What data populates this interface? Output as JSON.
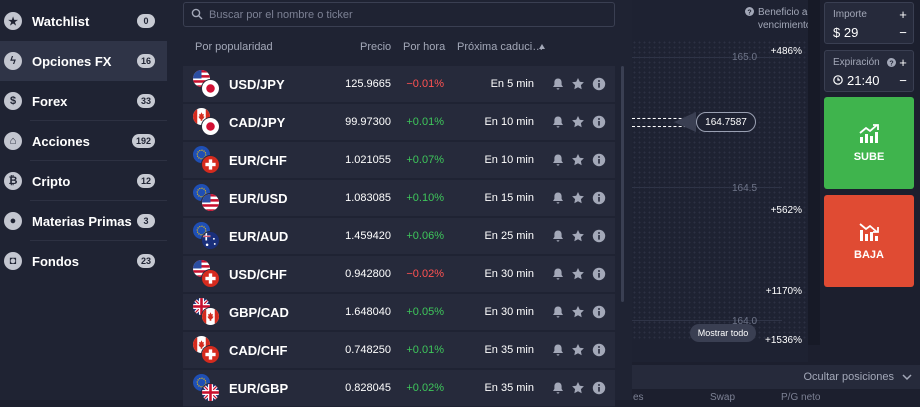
{
  "sidebar": {
    "items": [
      {
        "label": "Watchlist",
        "count": "0",
        "icon": "star-icon",
        "glyph": "★"
      },
      {
        "label": "Opciones FX",
        "count": "16",
        "icon": "bolt-icon",
        "glyph": "ϟ"
      },
      {
        "label": "Forex",
        "count": "33",
        "icon": "dollar-icon",
        "glyph": "$"
      },
      {
        "label": "Acciones",
        "count": "192",
        "icon": "bank-icon",
        "glyph": "⌂"
      },
      {
        "label": "Cripto",
        "count": "12",
        "icon": "bitcoin-icon",
        "glyph": "₿"
      },
      {
        "label": "Materias Primas",
        "count": "3",
        "icon": "drop-icon",
        "glyph": "●"
      },
      {
        "label": "Fondos",
        "count": "23",
        "icon": "box-icon",
        "glyph": "◘"
      }
    ]
  },
  "search": {
    "placeholder": "Buscar por el nombre o ticker"
  },
  "table": {
    "headers": {
      "popularity": "Por popularidad",
      "price": "Precio",
      "hourly": "Por hora",
      "next_expiry": "Próxima caduci…"
    },
    "rows": [
      {
        "pair": "USD/JPY",
        "price": "125.9665",
        "change": "−0.01%",
        "dir": "neg",
        "expiry": "En 5 min"
      },
      {
        "pair": "CAD/JPY",
        "price": "99.97300",
        "change": "+0.01%",
        "dir": "pos",
        "expiry": "En 10 min"
      },
      {
        "pair": "EUR/CHF",
        "price": "1.021055",
        "change": "+0.07%",
        "dir": "pos",
        "expiry": "En 10 min"
      },
      {
        "pair": "EUR/USD",
        "price": "1.083085",
        "change": "+0.10%",
        "dir": "pos",
        "expiry": "En 15 min"
      },
      {
        "pair": "EUR/AUD",
        "price": "1.459420",
        "change": "+0.06%",
        "dir": "pos",
        "expiry": "En 25 min"
      },
      {
        "pair": "USD/CHF",
        "price": "0.942800",
        "change": "−0.02%",
        "dir": "neg",
        "expiry": "En 30 min"
      },
      {
        "pair": "GBP/CAD",
        "price": "1.648040",
        "change": "+0.05%",
        "dir": "pos",
        "expiry": "En 30 min"
      },
      {
        "pair": "CAD/CHF",
        "price": "0.748250",
        "change": "+0.01%",
        "dir": "pos",
        "expiry": "En 35 min"
      },
      {
        "pair": "EUR/GBP",
        "price": "0.828045",
        "change": "+0.02%",
        "dir": "pos",
        "expiry": "En 35 min"
      }
    ]
  },
  "chart": {
    "benefit_label_1": "Beneficio al",
    "benefit_label_2": "vencimiento",
    "levels": [
      "165.0",
      "164.5",
      "164.0"
    ],
    "current_price": "164.7587",
    "show_all": "Mostrar todo",
    "payouts": [
      "+486%",
      "+562%",
      "+1170%",
      "+1536%"
    ]
  },
  "controls": {
    "amount_label": "Importe",
    "amount_value": "$ 29",
    "expiry_label": "Expiración",
    "expiry_value": "21:40",
    "up_label": "SUBE",
    "down_label": "BAJA"
  },
  "bottom": {
    "hide_positions": "Ocultar posiciones",
    "cols": [
      "es",
      "Swap",
      "P/G neto"
    ]
  },
  "colors": {
    "positive": "#3ec65b",
    "negative": "#ff5252",
    "up_button": "#3fb44d",
    "down_button": "#e04b33"
  }
}
